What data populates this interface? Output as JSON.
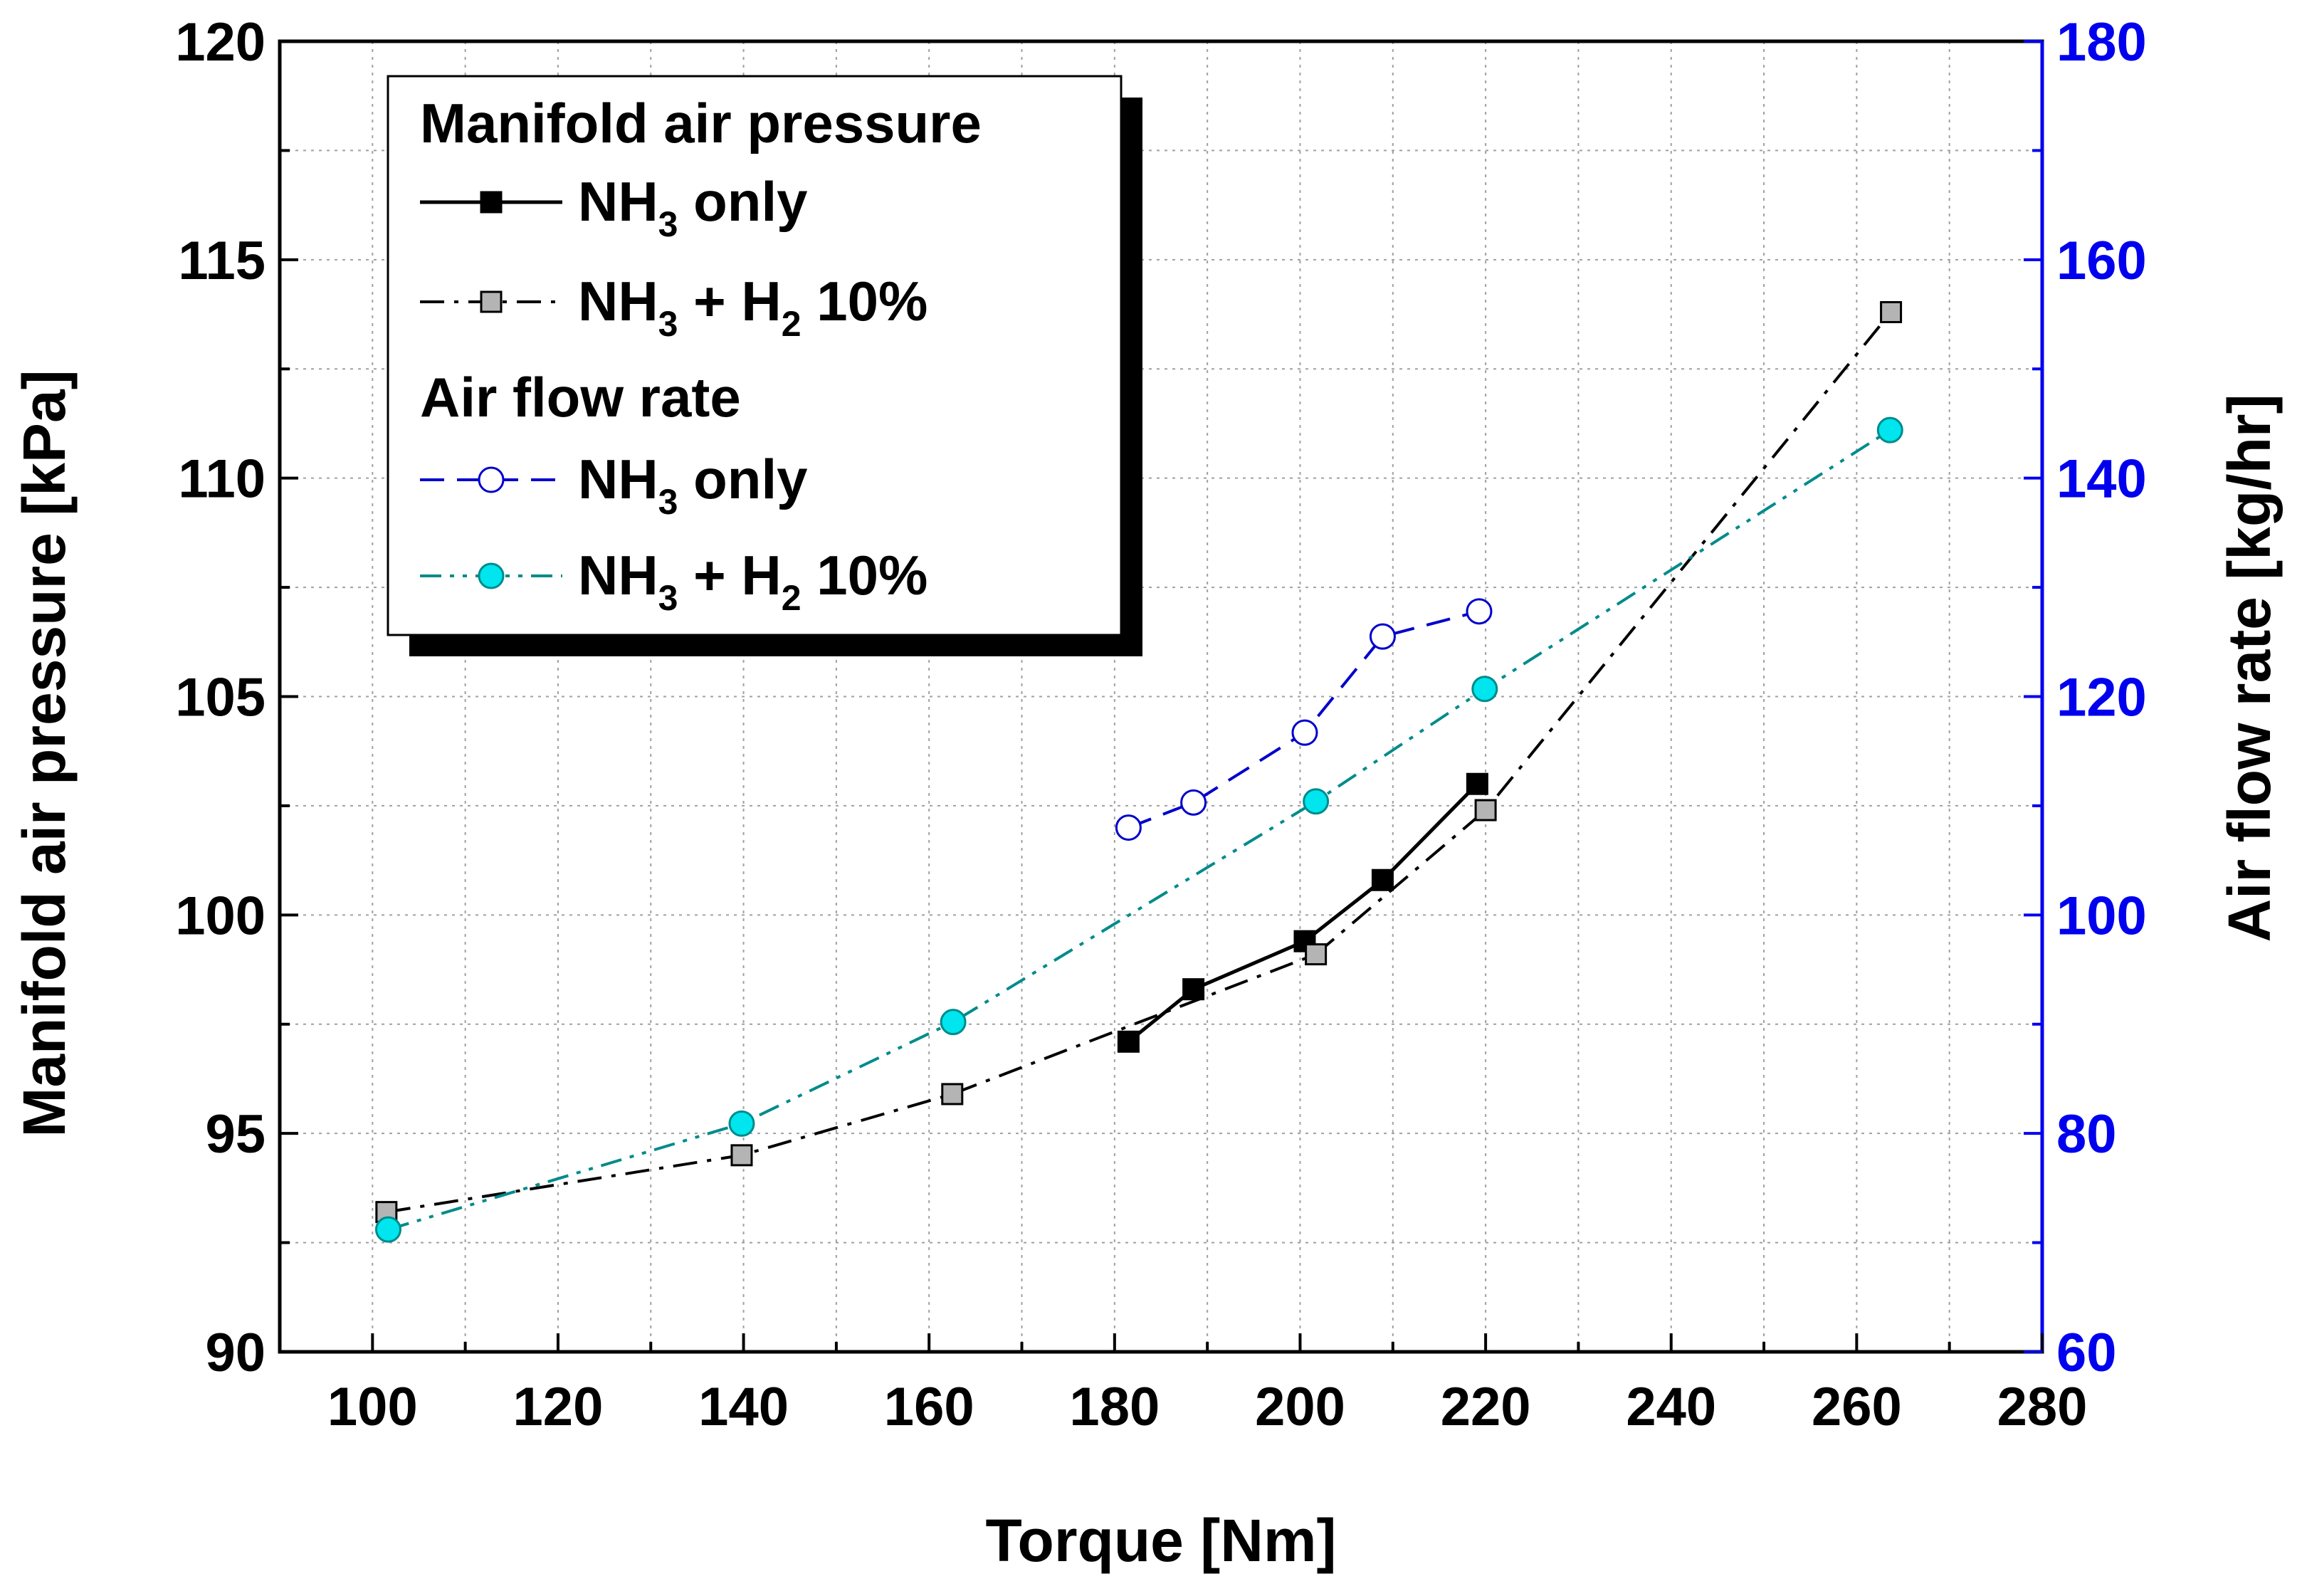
{
  "chart_data": {
    "type": "line",
    "x_axis": {
      "label": "Torque [Nm]",
      "range": [
        90,
        280
      ],
      "ticks": [
        100,
        120,
        140,
        160,
        180,
        200,
        220,
        240,
        260,
        280
      ]
    },
    "y_left": {
      "label": "Manifold air pressure [kPa]",
      "range": [
        90,
        120
      ],
      "ticks": [
        90,
        95,
        100,
        105,
        110,
        115,
        120
      ]
    },
    "y_right": {
      "label": "Air flow rate [kg/hr]",
      "range": [
        60,
        180
      ],
      "ticks": [
        60,
        80,
        100,
        120,
        140,
        160,
        180
      ],
      "color": "#0000ee"
    },
    "grid": true,
    "legend": {
      "placement": "top-left",
      "groups": [
        {
          "title": "Manifold air pressure",
          "entries": [
            {
              "series": "map_nh3",
              "main": "NH",
              "sub1": "3",
              "rest": " only"
            },
            {
              "series": "map_h2",
              "main": "NH",
              "sub1": "3",
              "mid": " + H",
              "sub2": "2",
              "rest": " 10%"
            }
          ]
        },
        {
          "title": "Air flow rate",
          "entries": [
            {
              "series": "afr_nh3",
              "main": "NH",
              "sub1": "3",
              "rest": " only"
            },
            {
              "series": "afr_h2",
              "main": "NH",
              "sub1": "3",
              "mid": " + H",
              "sub2": "2",
              "rest": " 10%"
            }
          ]
        }
      ]
    },
    "series": [
      {
        "id": "map_nh3",
        "name": "Manifold air pressure - NH3 only",
        "axis": "left",
        "color": "#000000",
        "dash": "solid",
        "marker": "square",
        "marker_fill": "#000000",
        "x": [
          181.5,
          188.5,
          200.5,
          208.9,
          219.1
        ],
        "y": [
          97.1,
          98.3,
          99.4,
          100.8,
          103.0
        ]
      },
      {
        "id": "map_h2",
        "name": "Manifold air pressure - NH3 + H2 10%",
        "axis": "left",
        "color": "#000000",
        "dash": "dashdot",
        "marker": "square",
        "marker_fill": "#b4b4b4",
        "x": [
          101.5,
          139.8,
          162.5,
          201.7,
          220.0,
          263.7
        ],
        "y": [
          93.2,
          94.5,
          95.9,
          99.1,
          102.4,
          113.8
        ]
      },
      {
        "id": "afr_nh3",
        "name": "Air flow rate - NH3 only",
        "axis": "right",
        "color": "#0000cc",
        "dash": "dash",
        "marker": "circle",
        "marker_fill": "#ffffff",
        "x": [
          181.5,
          188.5,
          200.5,
          208.9,
          219.3
        ],
        "y": [
          108,
          110.3,
          116.7,
          125.5,
          127.8
        ]
      },
      {
        "id": "afr_h2",
        "name": "Air flow rate - NH3 + H2 10%",
        "axis": "right",
        "color": "#008b8b",
        "dash": "dashdotdot",
        "marker": "circle",
        "marker_fill": "#00e5ee",
        "x": [
          101.7,
          139.8,
          162.6,
          201.7,
          219.9,
          263.6
        ],
        "y": [
          71.2,
          80.9,
          90.2,
          110.4,
          120.7,
          144.4
        ]
      }
    ]
  }
}
